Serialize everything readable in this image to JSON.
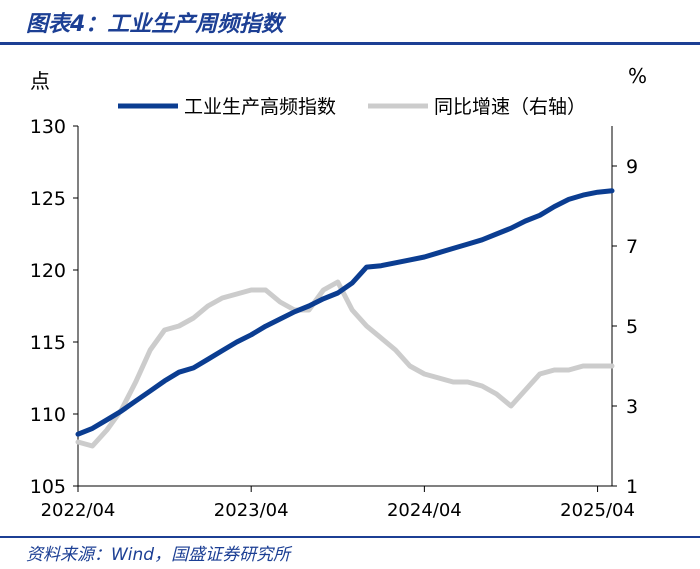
{
  "figure": {
    "title": "图表4：工业生产周频指数",
    "source": "资料来源：Wind，国盛证券研究所"
  },
  "colors": {
    "brand": "#1c3f94",
    "index_line": "#0b3d91",
    "yoy_line": "#cccccc",
    "axis": "#000000"
  },
  "chart_data": {
    "type": "line",
    "left_unit": "点",
    "right_unit": "%",
    "x_ticks": [
      "2022/04",
      "2023/04",
      "2024/04",
      "2025/04"
    ],
    "x_range": [
      "2022-04",
      "2025-05"
    ],
    "y_left": {
      "lim": [
        105,
        130
      ],
      "ticks": [
        105,
        110,
        115,
        120,
        125,
        130
      ]
    },
    "y_right": {
      "lim": [
        1,
        10
      ],
      "ticks": [
        1,
        3,
        5,
        7,
        9
      ]
    },
    "grid": false,
    "legend_position": "top",
    "series": [
      {
        "name": "工业生产高频指数",
        "axis": "left",
        "x": [
          "2022-04",
          "2022-05",
          "2022-06",
          "2022-07",
          "2022-08",
          "2022-09",
          "2022-10",
          "2022-11",
          "2022-12",
          "2023-01",
          "2023-02",
          "2023-03",
          "2023-04",
          "2023-05",
          "2023-06",
          "2023-07",
          "2023-08",
          "2023-09",
          "2023-10",
          "2023-11",
          "2023-12",
          "2024-01",
          "2024-02",
          "2024-03",
          "2024-04",
          "2024-05",
          "2024-06",
          "2024-07",
          "2024-08",
          "2024-09",
          "2024-10",
          "2024-11",
          "2024-12",
          "2025-01",
          "2025-02",
          "2025-03",
          "2025-04",
          "2025-05"
        ],
        "values": [
          108.6,
          109.0,
          109.6,
          110.2,
          110.9,
          111.6,
          112.3,
          112.9,
          113.2,
          113.8,
          114.4,
          115.0,
          115.5,
          116.1,
          116.6,
          117.1,
          117.5,
          118.0,
          118.4,
          119.1,
          120.2,
          120.3,
          120.5,
          120.7,
          120.9,
          121.2,
          121.5,
          121.8,
          122.1,
          122.5,
          122.9,
          123.4,
          123.8,
          124.4,
          124.9,
          125.2,
          125.4,
          125.5
        ]
      },
      {
        "name": "同比增速（右轴）",
        "axis": "right",
        "x": [
          "2022-04",
          "2022-05",
          "2022-06",
          "2022-07",
          "2022-08",
          "2022-09",
          "2022-10",
          "2022-11",
          "2022-12",
          "2023-01",
          "2023-02",
          "2023-03",
          "2023-04",
          "2023-05",
          "2023-06",
          "2023-07",
          "2023-08",
          "2023-09",
          "2023-10",
          "2023-11",
          "2023-12",
          "2024-01",
          "2024-02",
          "2024-03",
          "2024-04",
          "2024-05",
          "2024-06",
          "2024-07",
          "2024-08",
          "2024-09",
          "2024-10",
          "2024-11",
          "2024-12",
          "2025-01",
          "2025-02",
          "2025-03",
          "2025-04",
          "2025-05"
        ],
        "values": [
          2.1,
          2.0,
          2.4,
          2.9,
          3.6,
          4.4,
          4.9,
          5.0,
          5.2,
          5.5,
          5.7,
          5.8,
          5.9,
          5.9,
          5.6,
          5.4,
          5.4,
          5.9,
          6.1,
          5.4,
          5.0,
          4.7,
          4.4,
          4.0,
          3.8,
          3.7,
          3.6,
          3.6,
          3.5,
          3.3,
          3.0,
          3.4,
          3.8,
          3.9,
          3.9,
          4.0,
          4.0,
          4.0
        ]
      }
    ]
  }
}
